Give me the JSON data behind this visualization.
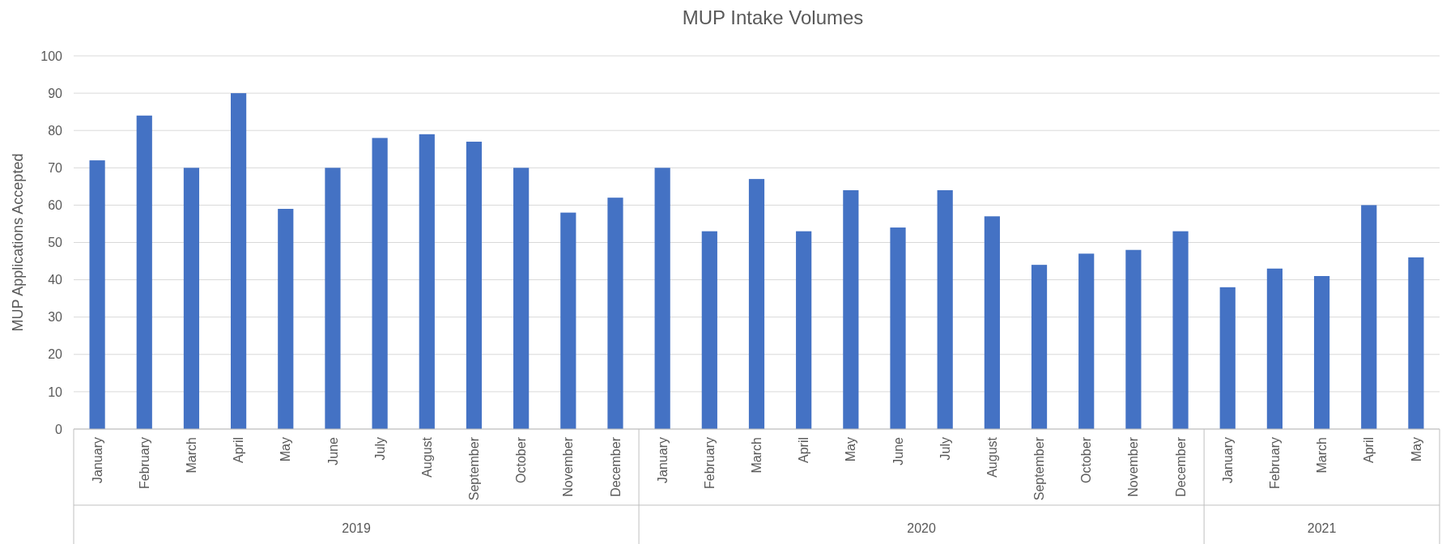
{
  "chart_data": {
    "type": "bar",
    "title": "MUP Intake Volumes",
    "ylabel": "MUP Applications Accepted",
    "categories": [
      "January",
      "February",
      "March",
      "April",
      "May",
      "June",
      "July",
      "August",
      "September",
      "October",
      "November",
      "December",
      "January",
      "February",
      "March",
      "April",
      "May",
      "June",
      "July",
      "August",
      "September",
      "October",
      "November",
      "December",
      "January",
      "February",
      "March",
      "April",
      "May"
    ],
    "values": [
      72,
      84,
      70,
      90,
      59,
      70,
      78,
      79,
      77,
      70,
      58,
      62,
      70,
      53,
      67,
      53,
      64,
      54,
      64,
      57,
      44,
      47,
      48,
      53,
      38,
      43,
      41,
      60,
      46
    ],
    "color": "#4472c4",
    "ylim": [
      0,
      100
    ],
    "yticks": [
      0,
      10,
      20,
      30,
      40,
      50,
      60,
      70,
      80,
      90,
      100
    ],
    "grid": "y",
    "annotations": [
      "2019",
      "2020",
      "2021"
    ]
  }
}
